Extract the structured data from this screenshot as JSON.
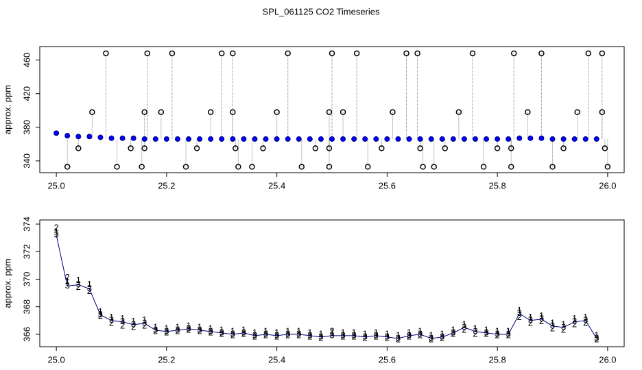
{
  "chart_data": [
    {
      "type": "scatter",
      "title": "SPL_061125  CO2 Timeseries",
      "ylabel": "approx. ppm",
      "xlim": [
        24.97,
        26.03
      ],
      "ylim": [
        326,
        476
      ],
      "xticks": [
        {
          "value": 25,
          "label": "25.0"
        },
        25.2,
        25.4,
        25.6,
        25.8,
        {
          "value": 26,
          "label": "26.0"
        }
      ],
      "yticks": [
        340,
        380,
        420,
        460
      ],
      "series": [
        {
          "color": "#0000ff",
          "edge": "#000080",
          "spikes": false,
          "x": [
            25.0,
            25.02,
            25.04,
            25.06,
            25.08,
            25.1,
            25.12,
            25.14,
            25.16,
            25.18,
            25.2,
            25.22,
            25.24,
            25.26,
            25.28,
            25.3,
            25.32,
            25.34,
            25.36,
            25.38,
            25.4,
            25.42,
            25.44,
            25.46,
            25.48,
            25.5,
            25.52,
            25.54,
            25.56,
            25.58,
            25.6,
            25.62,
            25.64,
            25.66,
            25.68,
            25.7,
            25.72,
            25.74,
            25.76,
            25.78,
            25.8,
            25.82,
            25.84,
            25.86,
            25.88,
            25.9,
            25.92,
            25.94,
            25.96,
            25.98
          ],
          "values": [
            373,
            370,
            369,
            369,
            368,
            367,
            367,
            367,
            366,
            366,
            366,
            366,
            366,
            366,
            366,
            366,
            366,
            366,
            366,
            366,
            366,
            366,
            366,
            366,
            366,
            366,
            366,
            366,
            366,
            366,
            366,
            366,
            366,
            366,
            366,
            366,
            366,
            366,
            366,
            366,
            366,
            366,
            367,
            367,
            367,
            366,
            366,
            366,
            366,
            366
          ]
        },
        {
          "color": "#000000",
          "edge": "#000000",
          "spikes": true,
          "base": 366,
          "x": [
            25.02,
            25.04,
            25.065,
            25.09,
            25.11,
            25.135,
            25.155,
            25.16,
            25.16,
            25.165,
            25.19,
            25.21,
            25.235,
            25.255,
            25.28,
            25.3,
            25.32,
            25.32,
            25.325,
            25.33,
            25.355,
            25.375,
            25.4,
            25.42,
            25.445,
            25.47,
            25.495,
            25.495,
            25.495,
            25.5,
            25.52,
            25.545,
            25.565,
            25.59,
            25.61,
            25.635,
            25.655,
            25.66,
            25.665,
            25.685,
            25.705,
            25.73,
            25.755,
            25.775,
            25.8,
            25.825,
            25.825,
            25.83,
            25.855,
            25.88,
            25.9,
            25.92,
            25.945,
            25.965,
            25.99,
            25.99,
            25.995,
            26.0
          ],
          "values": [
            333,
            355,
            398,
            468,
            333,
            355,
            333,
            355,
            398,
            468,
            398,
            468,
            333,
            355,
            398,
            468,
            468,
            398,
            355,
            333,
            333,
            355,
            398,
            468,
            333,
            355,
            333,
            355,
            398,
            468,
            398,
            468,
            333,
            355,
            398,
            468,
            468,
            355,
            333,
            333,
            355,
            398,
            468,
            333,
            355,
            333,
            355,
            468,
            398,
            468,
            333,
            355,
            398,
            468,
            468,
            398,
            355,
            333
          ]
        }
      ]
    },
    {
      "type": "text-scatter",
      "ylabel": "approx. ppm",
      "xlim": [
        24.97,
        26.03
      ],
      "ylim": [
        365.1,
        374.3
      ],
      "xticks": [
        {
          "value": 25,
          "label": "25.0"
        },
        25.2,
        25.4,
        25.6,
        25.8,
        {
          "value": 26,
          "label": "26.0"
        }
      ],
      "yticks": [
        366,
        368,
        370,
        372,
        374
      ],
      "x": [
        25.0,
        25.02,
        25.04,
        25.06,
        25.08,
        25.1,
        25.12,
        25.14,
        25.16,
        25.18,
        25.2,
        25.22,
        25.24,
        25.26,
        25.28,
        25.3,
        25.32,
        25.34,
        25.36,
        25.38,
        25.4,
        25.42,
        25.44,
        25.46,
        25.48,
        25.5,
        25.52,
        25.54,
        25.56,
        25.58,
        25.6,
        25.62,
        25.64,
        25.66,
        25.68,
        25.7,
        25.72,
        25.74,
        25.76,
        25.78,
        25.8,
        25.82,
        25.84,
        25.86,
        25.88,
        25.9,
        25.92,
        25.94,
        25.96,
        25.98
      ],
      "series": [
        {
          "marker": "1",
          "color": "#ff0000",
          "line": false,
          "values": [
            373.4,
            369.8,
            369.9,
            369.6,
            367.6,
            367.2,
            367.1,
            366.9,
            367.0,
            366.5,
            366.4,
            366.5,
            366.6,
            366.5,
            366.4,
            366.3,
            366.2,
            366.3,
            366.1,
            366.2,
            366.1,
            366.2,
            366.2,
            366.1,
            366.0,
            366.1,
            366.1,
            366.1,
            366.0,
            366.1,
            366.0,
            365.9,
            366.1,
            366.2,
            365.9,
            366.0,
            366.3,
            366.7,
            366.4,
            366.3,
            366.2,
            366.2,
            367.7,
            367.2,
            367.3,
            366.8,
            366.7,
            367.1,
            367.2,
            365.9
          ]
        },
        {
          "marker": "2",
          "color": "#00b000",
          "line": false,
          "values": [
            373.7,
            370.1,
            369.4,
            369.1,
            367.3,
            366.8,
            366.6,
            366.5,
            366.6,
            366.2,
            366.1,
            366.2,
            366.3,
            366.2,
            366.1,
            366.0,
            365.9,
            366.0,
            365.8,
            365.9,
            365.8,
            365.9,
            365.9,
            365.8,
            365.7,
            366.2,
            365.8,
            365.8,
            365.7,
            365.8,
            365.7,
            365.6,
            365.8,
            365.9,
            365.6,
            365.7,
            366.0,
            366.3,
            366.0,
            366.0,
            365.9,
            365.9,
            367.2,
            366.8,
            366.9,
            366.4,
            366.3,
            366.7,
            366.8,
            365.6
          ]
        },
        {
          "marker": "3",
          "color": "#0000ff",
          "line": true,
          "values": [
            373.2,
            369.5,
            369.6,
            369.3,
            367.4,
            367.0,
            366.9,
            366.7,
            366.8,
            366.3,
            366.2,
            366.3,
            366.4,
            366.3,
            366.2,
            366.1,
            366.0,
            366.1,
            365.9,
            366.0,
            365.9,
            366.0,
            366.0,
            365.9,
            365.8,
            365.9,
            365.9,
            365.9,
            365.8,
            365.9,
            365.8,
            365.7,
            365.9,
            366.0,
            365.7,
            365.8,
            366.1,
            366.5,
            366.2,
            366.1,
            366.0,
            366.0,
            367.5,
            367.0,
            367.1,
            366.6,
            366.5,
            366.9,
            367.0,
            365.7
          ]
        }
      ]
    }
  ]
}
